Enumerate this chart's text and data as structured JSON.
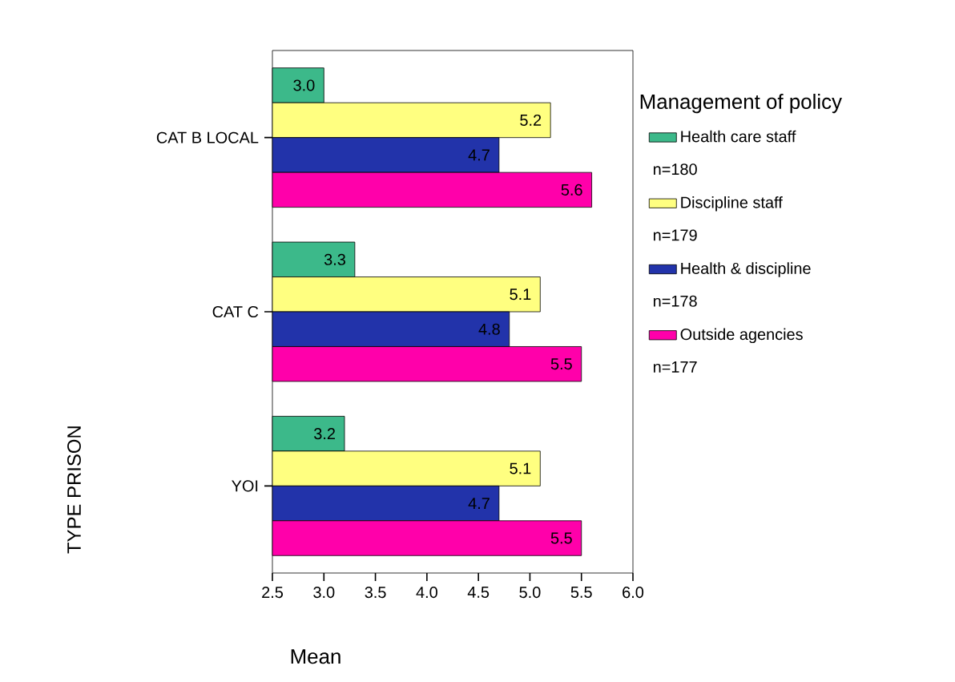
{
  "chart_data": {
    "type": "bar",
    "orientation": "horizontal",
    "xlabel": "Mean",
    "ylabel": "TYPE PRISON",
    "legend_title": "Management of policy",
    "legend": "right",
    "data_labels": true,
    "categories": [
      "CAT B LOCAL",
      "CAT C",
      "YOI"
    ],
    "xlim": [
      2.5,
      6.0
    ],
    "xticks": [
      2.5,
      {
        "value": 3,
        "label": "3.0"
      },
      3.5,
      {
        "value": 4,
        "label": "4.0"
      },
      4.5,
      {
        "value": 5,
        "label": "5.0"
      },
      5.5,
      {
        "value": 6,
        "label": "6.0"
      }
    ],
    "series": [
      {
        "name": "Health care staff",
        "color": "#3cb98a",
        "values": [
          3.0,
          3.3,
          3.2
        ],
        "value_labels": [
          "3.0",
          "3.3",
          "3.2"
        ]
      },
      {
        "name": "Discipline staff",
        "color": "#ffff80",
        "values": [
          5.2,
          5.1,
          5.1
        ],
        "value_labels": [
          "5.2",
          "5.1",
          "5.1"
        ]
      },
      {
        "name": "Health & discipline",
        "color": "#2233aa",
        "values": [
          4.7,
          4.8,
          4.7
        ],
        "value_labels": [
          "4.7",
          "4.8",
          "4.7"
        ]
      },
      {
        "name": "Outside agencies",
        "color": "#ff00aa",
        "values": [
          5.6,
          5.5,
          5.5
        ],
        "value_labels": [
          "5.6",
          "5.5",
          "5.5"
        ]
      }
    ],
    "annotations": [
      "n=180",
      "n=179",
      "n=178",
      "n=177"
    ]
  }
}
